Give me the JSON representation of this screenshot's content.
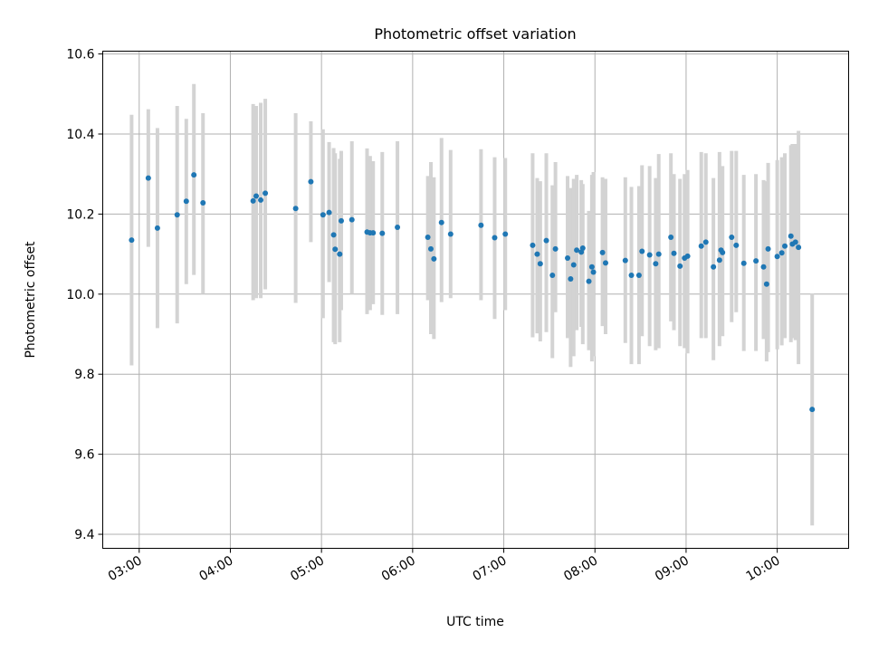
{
  "chart_data": {
    "type": "scatter",
    "title": "Photometric offset variation",
    "xlabel": "UTC time",
    "ylabel": "Photometric offset",
    "xlim": [
      "02:36",
      "10:47"
    ],
    "ylim": [
      9.365,
      10.607
    ],
    "xticks": [
      "03:00",
      "04:00",
      "05:00",
      "06:00",
      "07:00",
      "08:00",
      "09:00",
      "10:00"
    ],
    "yticks": [
      9.4,
      9.6,
      9.8,
      10.0,
      10.2,
      10.4,
      10.6
    ],
    "ytick_labels": [
      "9.4",
      "9.6",
      "9.8",
      "10.0",
      "10.2",
      "10.4",
      "10.6"
    ],
    "grid": true,
    "colors": {
      "point": "#1f77b4",
      "errorbar": "#d3d3d3"
    },
    "series": [
      {
        "x": [
          "02:55",
          "03:06",
          "03:12",
          "03:25",
          "03:31",
          "03:36",
          "03:42",
          "04:15",
          "04:17",
          "04:20",
          "04:23",
          "04:43",
          "04:53",
          "05:01",
          "05:05",
          "05:08",
          "05:09",
          "05:12",
          "05:13",
          "05:20",
          "05:30",
          "05:32",
          "05:34",
          "05:40",
          "05:50",
          "06:10",
          "06:12",
          "06:14",
          "06:19",
          "06:25",
          "06:45",
          "06:54",
          "07:01",
          "07:19",
          "07:22",
          "07:24",
          "07:28",
          "07:32",
          "07:34",
          "07:42",
          "07:44",
          "07:46",
          "07:48",
          "07:51",
          "07:52",
          "07:56",
          "07:58",
          "07:59",
          "08:05",
          "08:07",
          "08:20",
          "08:24",
          "08:29",
          "08:31",
          "08:36",
          "08:40",
          "08:42",
          "08:50",
          "08:52",
          "08:56",
          "08:59",
          "09:01",
          "09:10",
          "09:13",
          "09:18",
          "09:22",
          "09:23",
          "09:24",
          "09:30",
          "09:33",
          "09:38",
          "09:46",
          "09:51",
          "09:53",
          "09:54",
          "10:00",
          "10:03",
          "10:05",
          "10:09",
          "10:10",
          "10:12",
          "10:14",
          "10:23"
        ],
        "y": [
          10.135,
          10.29,
          10.165,
          10.198,
          10.232,
          10.298,
          10.228,
          10.233,
          10.245,
          10.235,
          10.252,
          10.214,
          10.281,
          10.198,
          10.204,
          10.148,
          10.112,
          10.1,
          10.183,
          10.186,
          10.155,
          10.153,
          10.153,
          10.152,
          10.167,
          10.142,
          10.113,
          10.088,
          10.179,
          10.15,
          10.172,
          10.141,
          10.15,
          10.122,
          10.1,
          10.076,
          10.134,
          10.047,
          10.113,
          10.09,
          10.038,
          10.073,
          10.11,
          10.105,
          10.115,
          10.032,
          10.068,
          10.055,
          10.104,
          10.078,
          10.084,
          10.047,
          10.047,
          10.107,
          10.098,
          10.076,
          10.1,
          10.142,
          10.102,
          10.07,
          10.09,
          10.095,
          10.12,
          10.13,
          10.068,
          10.085,
          10.11,
          10.104,
          10.142,
          10.122,
          10.077,
          10.083,
          10.068,
          10.025,
          10.113,
          10.094,
          10.103,
          10.12,
          10.145,
          10.125,
          10.13,
          10.117,
          9.712
        ],
        "yerr_low": [
          9.822,
          10.118,
          9.915,
          9.927,
          10.025,
          10.048,
          10.0,
          9.985,
          9.99,
          9.99,
          10.012,
          9.978,
          10.13,
          9.94,
          10.03,
          9.88,
          9.875,
          9.88,
          9.96,
          10.0,
          9.95,
          9.96,
          9.975,
          9.948,
          9.95,
          9.985,
          9.9,
          9.888,
          9.98,
          9.99,
          9.985,
          9.938,
          9.96,
          9.892,
          9.902,
          9.882,
          9.905,
          9.84,
          9.955,
          9.89,
          9.818,
          9.845,
          9.91,
          9.918,
          9.875,
          9.86,
          9.832,
          9.845,
          9.92,
          9.9,
          9.878,
          9.825,
          9.825,
          9.895,
          9.87,
          9.86,
          9.865,
          9.932,
          9.91,
          9.87,
          9.865,
          9.852,
          9.89,
          9.89,
          9.835,
          9.87,
          9.905,
          9.895,
          9.93,
          9.955,
          9.858,
          9.858,
          9.888,
          9.832,
          9.855,
          9.862,
          9.872,
          9.89,
          9.88,
          9.89,
          9.885,
          9.825,
          9.422
        ],
        "yerr_high": [
          10.448,
          10.462,
          10.415,
          10.47,
          10.438,
          10.525,
          10.452,
          10.475,
          10.47,
          10.478,
          10.488,
          10.452,
          10.432,
          10.412,
          10.38,
          10.365,
          10.352,
          10.338,
          10.358,
          10.382,
          10.364,
          10.345,
          10.332,
          10.355,
          10.382,
          10.295,
          10.33,
          10.292,
          10.39,
          10.36,
          10.362,
          10.342,
          10.34,
          10.352,
          10.29,
          10.282,
          10.352,
          10.272,
          10.33,
          10.295,
          10.265,
          10.288,
          10.298,
          10.285,
          10.275,
          10.208,
          10.298,
          10.305,
          10.292,
          10.288,
          10.292,
          10.268,
          10.27,
          10.322,
          10.32,
          10.29,
          10.35,
          10.352,
          10.3,
          10.288,
          10.3,
          10.31,
          10.355,
          10.352,
          10.29,
          10.355,
          10.318,
          10.32,
          10.358,
          10.358,
          10.298,
          10.3,
          10.285,
          10.282,
          10.328,
          10.335,
          10.342,
          10.352,
          10.372,
          10.375,
          10.375,
          10.408,
          10.002
        ]
      }
    ]
  }
}
